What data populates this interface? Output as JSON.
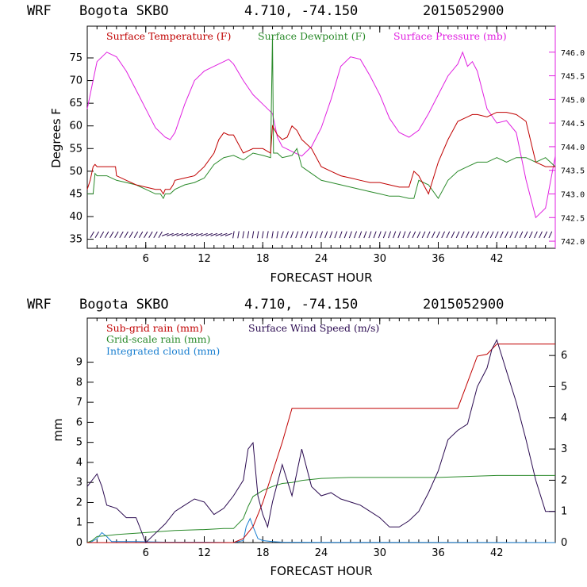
{
  "colors": {
    "temperature": "#c00000",
    "dewpoint": "#2a8a2a",
    "pressure": "#e020e0",
    "wind_barb": "#2a0a50",
    "subgrid_rain": "#c00000",
    "gridscale_rain": "#2a8a2a",
    "cloud": "#1a7fd0",
    "wind_speed": "#2a0a50"
  },
  "chart_data": [
    {
      "type": "line",
      "header": {
        "model": "WRF",
        "station": "Bogota SKBO",
        "coords": "4.710, -74.150",
        "init": "2015052900"
      },
      "title": "WRF  Bogota SKBO  4.710, -74.150  2015052900",
      "xlabel": "FORECAST HOUR",
      "ylabel": "Degrees F",
      "xlim": [
        0,
        48
      ],
      "ylim": [
        33,
        82
      ],
      "y2lim": [
        741.85,
        746.55
      ],
      "xticks": [
        "6",
        "12",
        "18",
        "24",
        "30",
        "36",
        "42"
      ],
      "yticks": [
        "35",
        "40",
        "45",
        "50",
        "55",
        "60",
        "65",
        "70",
        "75"
      ],
      "y2ticks": [
        "742.0",
        "742.5",
        "743.0",
        "743.5",
        "744.0",
        "744.5",
        "745.0",
        "745.5",
        "746.0"
      ],
      "legend": [
        "Surface Temperature (F)",
        "Surface Dewpoint (F)",
        "Surface Pressure (mb)"
      ],
      "series": [
        {
          "name": "Surface Temperature (F)",
          "axis": "left",
          "x": [
            0,
            0.3,
            0.6,
            0.8,
            1,
            2,
            2.9,
            3,
            4,
            5,
            6,
            7,
            7.5,
            7.8,
            8,
            8.5,
            8.8,
            9,
            10,
            11,
            12,
            13,
            13.5,
            14,
            14.5,
            15,
            16,
            17,
            18,
            18.8,
            19,
            19.5,
            20,
            20.5,
            21,
            21.5,
            22,
            23,
            24,
            25,
            26,
            27,
            28,
            29,
            30,
            31,
            32,
            33,
            33.5,
            34,
            35,
            36,
            37,
            38,
            39,
            39.5,
            40,
            41,
            42,
            43,
            44,
            45,
            46,
            47,
            48
          ],
          "y": [
            46,
            48,
            51,
            51.5,
            51,
            51,
            51,
            49,
            48,
            47,
            46.5,
            46,
            46,
            45,
            46,
            46,
            47,
            48,
            48.5,
            49,
            51,
            54,
            57,
            58.5,
            58,
            58,
            54,
            55,
            55,
            54,
            60,
            58,
            57,
            57.5,
            60,
            59,
            57,
            55,
            51,
            50,
            49,
            48.5,
            48,
            47.5,
            47.5,
            47,
            46.5,
            46.5,
            50,
            49,
            45,
            52,
            57,
            61,
            62,
            62.5,
            62.5,
            62,
            63,
            63,
            62.5,
            61,
            52,
            51,
            51
          ]
        },
        {
          "name": "Surface Dewpoint (F)",
          "axis": "left",
          "x": [
            0,
            0.6,
            0.8,
            1,
            2,
            3,
            4,
            5,
            6,
            7,
            7.5,
            7.8,
            8,
            8.5,
            9,
            10,
            11,
            12,
            13,
            14,
            15,
            16,
            17,
            18,
            18.8,
            19,
            19.1,
            19.5,
            20,
            21,
            21.5,
            22,
            23,
            24,
            25,
            26,
            27,
            28,
            29,
            30,
            31,
            32,
            33,
            33.5,
            34,
            35,
            36,
            37,
            38,
            39,
            40,
            41,
            42,
            43,
            44,
            45,
            46,
            47,
            48
          ],
          "y": [
            45,
            45,
            49.5,
            49,
            49,
            48,
            47.5,
            47,
            46,
            45,
            45,
            44,
            45,
            45,
            46,
            47,
            47.5,
            48.5,
            51.5,
            53,
            53.5,
            52.5,
            54,
            53.5,
            53,
            80,
            54,
            54,
            53,
            53.5,
            55,
            51,
            49.5,
            48,
            47.5,
            47,
            46.5,
            46,
            45.5,
            45,
            44.5,
            44.5,
            44,
            44,
            48,
            47,
            44,
            48,
            50,
            51,
            52,
            52,
            53,
            52,
            53,
            53,
            52,
            53,
            51
          ]
        },
        {
          "name": "Surface Pressure (mb)",
          "axis": "right",
          "x": [
            0,
            0.5,
            1,
            2,
            3,
            4,
            5,
            6,
            7,
            8,
            8.5,
            9,
            10,
            11,
            12,
            13,
            14,
            14.5,
            15,
            16,
            17,
            18,
            19,
            19.5,
            20,
            21,
            22,
            23,
            24,
            25,
            26,
            27,
            28,
            29,
            30,
            31,
            32,
            33,
            34,
            35,
            36,
            37,
            38,
            38.5,
            39,
            39.5,
            40,
            41,
            42,
            43,
            44,
            45,
            46,
            47,
            48
          ],
          "y": [
            744.8,
            745.3,
            745.8,
            746.0,
            745.9,
            745.6,
            745.2,
            744.8,
            744.4,
            744.2,
            744.15,
            744.3,
            744.9,
            745.4,
            745.6,
            745.7,
            745.8,
            745.85,
            745.75,
            745.4,
            745.1,
            744.9,
            744.7,
            744.2,
            744.0,
            743.9,
            743.8,
            744.0,
            744.4,
            745.0,
            745.7,
            745.9,
            745.85,
            745.5,
            745.1,
            744.6,
            744.3,
            744.2,
            744.35,
            744.7,
            745.1,
            745.5,
            745.75,
            746.0,
            745.7,
            745.8,
            745.6,
            744.8,
            744.5,
            744.55,
            744.3,
            743.3,
            742.5,
            742.7,
            743.8
          ]
        }
      ]
    },
    {
      "type": "line",
      "header": {
        "model": "WRF",
        "station": "Bogota SKBO",
        "coords": "4.710, -74.150",
        "init": "2015052900"
      },
      "title": "WRF  Bogota SKBO  4.710, -74.150  2015052900",
      "xlabel": "FORECAST HOUR",
      "ylabel": "mm",
      "xlim": [
        0,
        48
      ],
      "ylim": [
        0,
        11.2
      ],
      "y2lim": [
        0,
        7.2
      ],
      "xticks": [
        "6",
        "12",
        "18",
        "24",
        "30",
        "36",
        "42"
      ],
      "yticks": [
        "0",
        "1",
        "2",
        "3",
        "4",
        "5",
        "6",
        "7",
        "8",
        "9"
      ],
      "y2ticks": [
        "0",
        "1",
        "2",
        "3",
        "4",
        "5",
        "6"
      ],
      "legend": [
        "Sub-grid rain (mm)",
        "Surface Wind Speed (m/s)",
        "Grid-scale rain (mm)",
        "Integrated cloud (mm)"
      ],
      "series": [
        {
          "name": "Sub-grid rain (mm)",
          "axis": "left",
          "x": [
            0,
            15,
            16,
            17,
            18,
            19,
            20,
            21,
            24,
            30,
            36,
            38,
            39,
            40,
            41,
            42,
            48
          ],
          "y": [
            0,
            0,
            0.2,
            0.8,
            2.0,
            3.5,
            5.0,
            6.7,
            6.7,
            6.7,
            6.7,
            6.7,
            8,
            9.3,
            9.4,
            9.9,
            9.9
          ]
        },
        {
          "name": "Surface Wind Speed (m/s)",
          "axis": "right",
          "x": [
            0,
            1,
            1.5,
            2,
            3,
            4,
            5,
            6,
            7,
            8,
            9,
            10,
            11,
            12,
            13,
            14,
            15,
            16,
            16.5,
            17,
            17.5,
            18,
            18.5,
            19,
            20,
            21,
            22,
            23,
            24,
            25,
            26,
            27,
            28,
            29,
            30,
            31,
            32,
            33,
            34,
            35,
            36,
            37,
            38,
            39,
            40,
            41,
            41.5,
            42,
            43,
            44,
            45,
            46,
            47,
            48
          ],
          "y": [
            1.8,
            2.2,
            1.8,
            1.2,
            1.1,
            0.8,
            0.8,
            0,
            0.3,
            0.6,
            1.0,
            1.2,
            1.4,
            1.3,
            0.9,
            1.1,
            1.5,
            2.0,
            3.0,
            3.2,
            1.5,
            0.9,
            0.5,
            1.3,
            2.5,
            1.5,
            3.0,
            1.8,
            1.5,
            1.6,
            1.4,
            1.3,
            1.2,
            1.0,
            0.8,
            0.5,
            0.5,
            0.7,
            1.0,
            1.6,
            2.3,
            3.3,
            3.6,
            3.8,
            5.0,
            5.6,
            6.2,
            6.5,
            5.5,
            4.5,
            3.3,
            2.0,
            1.0,
            1.0
          ]
        },
        {
          "name": "Grid-scale rain (mm)",
          "axis": "left",
          "x": [
            0,
            0.5,
            1,
            2,
            3,
            6,
            9,
            12,
            14,
            15,
            16,
            16.5,
            17,
            18,
            19,
            20,
            21,
            22,
            24,
            27,
            30,
            36,
            39,
            42,
            45,
            48
          ],
          "y": [
            0,
            0.1,
            0.3,
            0.35,
            0.4,
            0.5,
            0.6,
            0.65,
            0.7,
            0.7,
            1.2,
            1.8,
            2.3,
            2.6,
            2.8,
            2.95,
            3.0,
            3.1,
            3.2,
            3.25,
            3.25,
            3.25,
            3.3,
            3.35,
            3.35,
            3.35
          ]
        },
        {
          "name": "Integrated cloud (mm)",
          "axis": "left",
          "x": [
            0,
            0.5,
            1,
            1.5,
            2,
            2.5,
            3,
            5,
            8,
            12,
            15,
            16,
            16.3,
            16.7,
            17,
            17.5,
            18,
            19,
            20,
            24,
            48
          ],
          "y": [
            0,
            0.05,
            0.2,
            0.5,
            0.3,
            0.05,
            0.05,
            0.05,
            0.02,
            0.02,
            0,
            0.1,
            0.8,
            1.2,
            0.8,
            0.2,
            0.1,
            0.05,
            0.02,
            0.01,
            0
          ]
        }
      ]
    }
  ]
}
